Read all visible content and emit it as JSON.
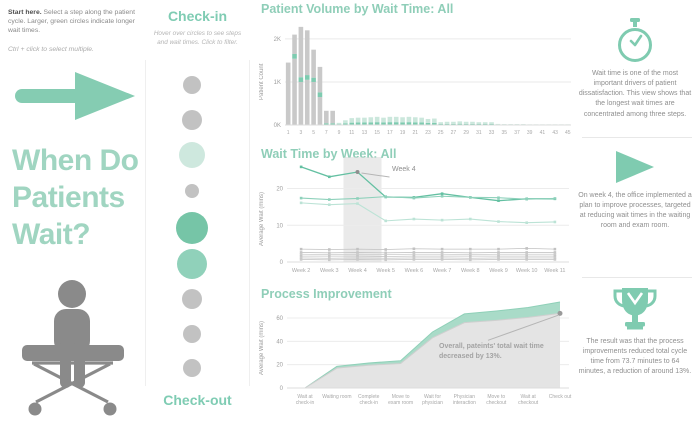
{
  "colors": {
    "accent": "#7fcbb0",
    "header_green": "#8fceb8",
    "title_green": "#a0d5c1",
    "bar_gray": "#c9c9c9",
    "band_green": "#7ecbb0",
    "bar_light_green": "#cbe7dc",
    "circle_gray": "#c2c2c2",
    "circle_light_green": "#cee8de",
    "circle_dark_green": "#76c5a7",
    "circle_mid_green": "#90d1ba",
    "text_gray": "#8a8a8a"
  },
  "left_panel": {
    "instructions_bold": "Start here.",
    "instructions_text": " Select a step along the patient cycle. Larger, green circles indicate longer wait times.",
    "instructions_hint": "Ctrl + click to select multiple.",
    "title_line1": "When Do",
    "title_line2": "Patients",
    "title_line3": "Wait?"
  },
  "steps_panel": {
    "top_label": "Check-in",
    "subtitle_line1": "Hover over circles to see steps",
    "subtitle_line2": "and wait times. Click to filter.",
    "bottom_label": "Check-out",
    "circles": [
      {
        "id": 1,
        "radius": 9,
        "color": "#c2c2c2"
      },
      {
        "id": 2,
        "radius": 10,
        "color": "#c2c2c2"
      },
      {
        "id": 3,
        "radius": 13,
        "color": "#cee8de"
      },
      {
        "id": 4,
        "radius": 7,
        "color": "#c2c2c2"
      },
      {
        "id": 5,
        "radius": 16,
        "color": "#76c5a7"
      },
      {
        "id": 6,
        "radius": 15,
        "color": "#90d1ba"
      },
      {
        "id": 7,
        "radius": 10,
        "color": "#c2c2c2"
      },
      {
        "id": 8,
        "radius": 9,
        "color": "#c2c2c2"
      },
      {
        "id": 9,
        "radius": 9,
        "color": "#c2c2c2"
      }
    ]
  },
  "chart_data": [
    {
      "type": "bar",
      "title": "Patient Volume by Wait Time: All",
      "ylabel": "Patient Count",
      "ylim": [
        0,
        2300
      ],
      "yticks": [
        0,
        1000,
        2000
      ],
      "ytick_labels": [
        "0K",
        "1K",
        "2K"
      ],
      "xticks_shown": [
        1,
        3,
        5,
        7,
        9,
        11,
        13,
        15,
        17,
        19,
        21,
        23,
        25,
        27,
        29,
        31,
        33,
        35,
        37,
        39,
        41,
        43,
        45
      ],
      "bars": [
        {
          "x": 1,
          "segments": [
            [
              "gray",
              1450
            ]
          ]
        },
        {
          "x": 2,
          "segments": [
            [
              "gray",
              1540
            ],
            [
              "green",
              110
            ],
            [
              "gray",
              450
            ]
          ]
        },
        {
          "x": 3,
          "segments": [
            [
              "gray",
              1000
            ],
            [
              "green",
              110
            ],
            [
              "gray",
              1170
            ]
          ]
        },
        {
          "x": 4,
          "segments": [
            [
              "gray",
              1050
            ],
            [
              "green",
              110
            ],
            [
              "gray",
              1040
            ]
          ]
        },
        {
          "x": 5,
          "segments": [
            [
              "gray",
              1000
            ],
            [
              "green",
              100
            ],
            [
              "gray",
              650
            ]
          ]
        },
        {
          "x": 6,
          "segments": [
            [
              "gray",
              650
            ],
            [
              "green",
              110
            ],
            [
              "gray",
              590
            ]
          ]
        },
        {
          "x": 7,
          "segments": [
            [
              "green",
              40
            ],
            [
              "gray",
              290
            ]
          ]
        },
        {
          "x": 8,
          "segments": [
            [
              "green",
              40
            ],
            [
              "gray",
              290
            ]
          ]
        },
        {
          "x": 9,
          "segments": [
            [
              "green",
              20
            ],
            [
              "lightgreen",
              30
            ]
          ]
        },
        {
          "x": 10,
          "segments": [
            [
              "green",
              40
            ],
            [
              "lightgreen",
              70
            ]
          ]
        },
        {
          "x": 11,
          "segments": [
            [
              "green",
              55
            ],
            [
              "lightgreen",
              105
            ]
          ]
        },
        {
          "x": 12,
          "segments": [
            [
              "green",
              60
            ],
            [
              "lightgreen",
              110
            ]
          ]
        },
        {
          "x": 13,
          "segments": [
            [
              "green",
              60
            ],
            [
              "lightgreen",
              110
            ]
          ]
        },
        {
          "x": 14,
          "segments": [
            [
              "green",
              63
            ],
            [
              "lightgreen",
              117
            ]
          ]
        },
        {
          "x": 15,
          "segments": [
            [
              "green",
              66
            ],
            [
              "lightgreen",
              124
            ]
          ]
        },
        {
          "x": 16,
          "segments": [
            [
              "green",
              60
            ],
            [
              "lightgreen",
              110
            ]
          ]
        },
        {
          "x": 17,
          "segments": [
            [
              "green",
              66
            ],
            [
              "lightgreen",
              124
            ]
          ]
        },
        {
          "x": 18,
          "segments": [
            [
              "green",
              66
            ],
            [
              "lightgreen",
              124
            ]
          ]
        },
        {
          "x": 19,
          "segments": [
            [
              "green",
              63
            ],
            [
              "lightgreen",
              117
            ]
          ]
        },
        {
          "x": 20,
          "segments": [
            [
              "green",
              66
            ],
            [
              "lightgreen",
              124
            ]
          ]
        },
        {
          "x": 21,
          "segments": [
            [
              "green",
              63
            ],
            [
              "lightgreen",
              117
            ]
          ]
        },
        {
          "x": 22,
          "segments": [
            [
              "green",
              60
            ],
            [
              "lightgreen",
              110
            ]
          ]
        },
        {
          "x": 23,
          "segments": [
            [
              "green",
              49
            ],
            [
              "lightgreen",
              91
            ]
          ]
        },
        {
          "x": 24,
          "segments": [
            [
              "green",
              52
            ],
            [
              "lightgreen",
              98
            ]
          ]
        },
        {
          "x": 25,
          "segments": [
            [
              "green",
              23
            ],
            [
              "lightgreen",
              42
            ]
          ]
        },
        {
          "x": 26,
          "segments": [
            [
              "green",
              26
            ],
            [
              "lightgreen",
              49
            ]
          ]
        },
        {
          "x": 27,
          "segments": [
            [
              "green",
              26
            ],
            [
              "lightgreen",
              49
            ]
          ]
        },
        {
          "x": 28,
          "segments": [
            [
              "green",
              30
            ],
            [
              "lightgreen",
              55
            ]
          ]
        },
        {
          "x": 29,
          "segments": [
            [
              "green",
              26
            ],
            [
              "lightgreen",
              49
            ]
          ]
        },
        {
          "x": 30,
          "segments": [
            [
              "green",
              26
            ],
            [
              "lightgreen",
              49
            ]
          ]
        },
        {
          "x": 31,
          "segments": [
            [
              "green",
              23
            ],
            [
              "lightgreen",
              42
            ]
          ]
        },
        {
          "x": 32,
          "segments": [
            [
              "green",
              23
            ],
            [
              "lightgreen",
              42
            ]
          ]
        },
        {
          "x": 33,
          "segments": [
            [
              "green",
              23
            ],
            [
              "lightgreen",
              42
            ]
          ]
        },
        {
          "x": 34,
          "segments": [
            [
              "green",
              9
            ],
            [
              "lightgreen",
              16
            ]
          ]
        },
        {
          "x": 35,
          "segments": [
            [
              "green",
              7
            ],
            [
              "lightgreen",
              13
            ]
          ]
        },
        {
          "x": 36,
          "segments": [
            [
              "green",
              7
            ],
            [
              "lightgreen",
              13
            ]
          ]
        },
        {
          "x": 37,
          "segments": [
            [
              "green",
              7
            ],
            [
              "lightgreen",
              13
            ]
          ]
        },
        {
          "x": 38,
          "segments": [
            [
              "green",
              7
            ],
            [
              "lightgreen",
              13
            ]
          ]
        },
        {
          "x": 39,
          "segments": [
            [
              "green",
              5
            ],
            [
              "lightgreen",
              10
            ]
          ]
        },
        {
          "x": 40,
          "segments": [
            [
              "green",
              5
            ],
            [
              "lightgreen",
              10
            ]
          ]
        },
        {
          "x": 41,
          "segments": [
            [
              "green",
              5
            ],
            [
              "lightgreen",
              10
            ]
          ]
        },
        {
          "x": 42,
          "segments": [
            [
              "green",
              5
            ],
            [
              "lightgreen",
              10
            ]
          ]
        },
        {
          "x": 43,
          "segments": [
            [
              "green",
              5
            ],
            [
              "lightgreen",
              10
            ]
          ]
        },
        {
          "x": 44,
          "segments": [
            [
              "green",
              5
            ],
            [
              "lightgreen",
              10
            ]
          ]
        },
        {
          "x": 45,
          "segments": [
            [
              "green",
              5
            ],
            [
              "lightgreen",
              10
            ]
          ]
        }
      ]
    },
    {
      "type": "line",
      "title": "Wait Time by Week: All",
      "ylabel": "Average Wait (mins)",
      "ylim": [
        0,
        27.5
      ],
      "yticks": [
        0,
        10,
        20
      ],
      "categories": [
        "Week 2",
        "Week 3",
        "Week 4",
        "Week 5",
        "Week 6",
        "Week 7",
        "Week 8",
        "Week 9",
        "Week 10",
        "Week 11"
      ],
      "highlight_band": "Week 4",
      "annotation": {
        "text": "Week 4",
        "series": "green-1",
        "value": 24.5
      },
      "series": [
        {
          "name": "green-1",
          "color": "#64c0a2",
          "width": 1.3,
          "values": [
            25.9,
            23.2,
            24.5,
            17.7,
            17.6,
            18.6,
            17.6,
            16.7,
            17.2,
            17.2
          ]
        },
        {
          "name": "green-2",
          "color": "#8ed1bb",
          "width": 1.1,
          "values": [
            17.4,
            17.0,
            17.3,
            17.8,
            17.4,
            17.9,
            17.6,
            17.5,
            17.1,
            17.3
          ]
        },
        {
          "name": "green-3",
          "color": "#bce3d6",
          "width": 1.1,
          "values": [
            16.1,
            15.6,
            15.9,
            11.2,
            11.7,
            11.4,
            11.7,
            11.0,
            10.7,
            10.9
          ]
        },
        {
          "name": "gray-1",
          "color": "#c2c2c2",
          "width": 0.8,
          "values": [
            3.5,
            3.4,
            3.5,
            3.4,
            3.6,
            3.5,
            3.5,
            3.5,
            3.7,
            3.5
          ]
        },
        {
          "name": "gray-2",
          "color": "#c6c6c6",
          "width": 0.8,
          "values": [
            2.6,
            2.5,
            2.6,
            2.5,
            2.6,
            2.6,
            2.5,
            2.6,
            2.6,
            2.6
          ]
        },
        {
          "name": "gray-3",
          "color": "#cccccc",
          "width": 0.8,
          "values": [
            2.1,
            2.0,
            2.1,
            2.0,
            2.1,
            2.1,
            2.0,
            2.1,
            2.1,
            2.1
          ]
        },
        {
          "name": "gray-4",
          "color": "#c6c6c6",
          "width": 0.8,
          "values": [
            1.6,
            1.6,
            1.6,
            1.5,
            1.6,
            1.6,
            1.6,
            1.6,
            1.6,
            1.6
          ]
        },
        {
          "name": "gray-5",
          "color": "#cccccc",
          "width": 0.8,
          "values": [
            1.1,
            1.0,
            1.1,
            1.0,
            1.1,
            1.1,
            1.0,
            1.1,
            1.1,
            1.1
          ]
        },
        {
          "name": "gray-6",
          "color": "#c9c9c9",
          "width": 0.8,
          "values": [
            0.7,
            0.6,
            0.7,
            0.6,
            0.7,
            0.7,
            0.6,
            0.7,
            0.7,
            0.7
          ]
        }
      ]
    },
    {
      "type": "area",
      "title": "Process Improvement",
      "ylabel": "Average Wait (mins)",
      "ylim": [
        0,
        78
      ],
      "yticks": [
        0,
        20,
        40,
        60
      ],
      "categories": [
        "Wait at check-in",
        "Waiting room",
        "Complete check-in",
        "Move to exam room",
        "Wait for physician",
        "Physician interaction",
        "Move to checkout",
        "Wait at checkout",
        "Check out"
      ],
      "category_lines": [
        [
          "Wait at",
          "check-in"
        ],
        [
          "Waiting room"
        ],
        [
          "Complete",
          "check-in"
        ],
        [
          "Move to",
          "exam room"
        ],
        [
          "Wait for",
          "physician"
        ],
        [
          "Physician",
          "interaction"
        ],
        [
          "Move to",
          "checkout"
        ],
        [
          "Wait at",
          "checkout"
        ],
        [
          "Check out"
        ]
      ],
      "series": [
        {
          "name": "total-wait-before",
          "fill": "#a9dbc8",
          "stroke": "#8fd0b8",
          "values": [
            0,
            18.6,
            21.4,
            23.4,
            48,
            63.5,
            66,
            69,
            73.7
          ]
        },
        {
          "name": "total-wait-after",
          "fill": "#e4e4e4",
          "stroke": "#cfcfcf",
          "values": [
            0,
            17,
            19.5,
            21,
            43,
            56,
            58,
            60.5,
            64
          ]
        }
      ],
      "annotation": {
        "text": "Overall, pateints' total wait time decreased by 13%.",
        "point_value": 64
      }
    }
  ],
  "right_panel": {
    "notes": [
      {
        "icon": "stopwatch-icon",
        "text": "Wait time is one of the most important drivers of patient dissatisfaction. This view shows that the longest wait times are concentrated among three steps."
      },
      {
        "icon": "play-icon",
        "text": "On week 4, the office implemented a plan to improve processes, targeted at reducing wait times in the waiting room and exam room."
      },
      {
        "icon": "trophy-icon",
        "text": "The result was that the process improvements reduced total cycle time from 73.7 minutes to 64 minutes, a reduction of around 13%."
      }
    ]
  }
}
